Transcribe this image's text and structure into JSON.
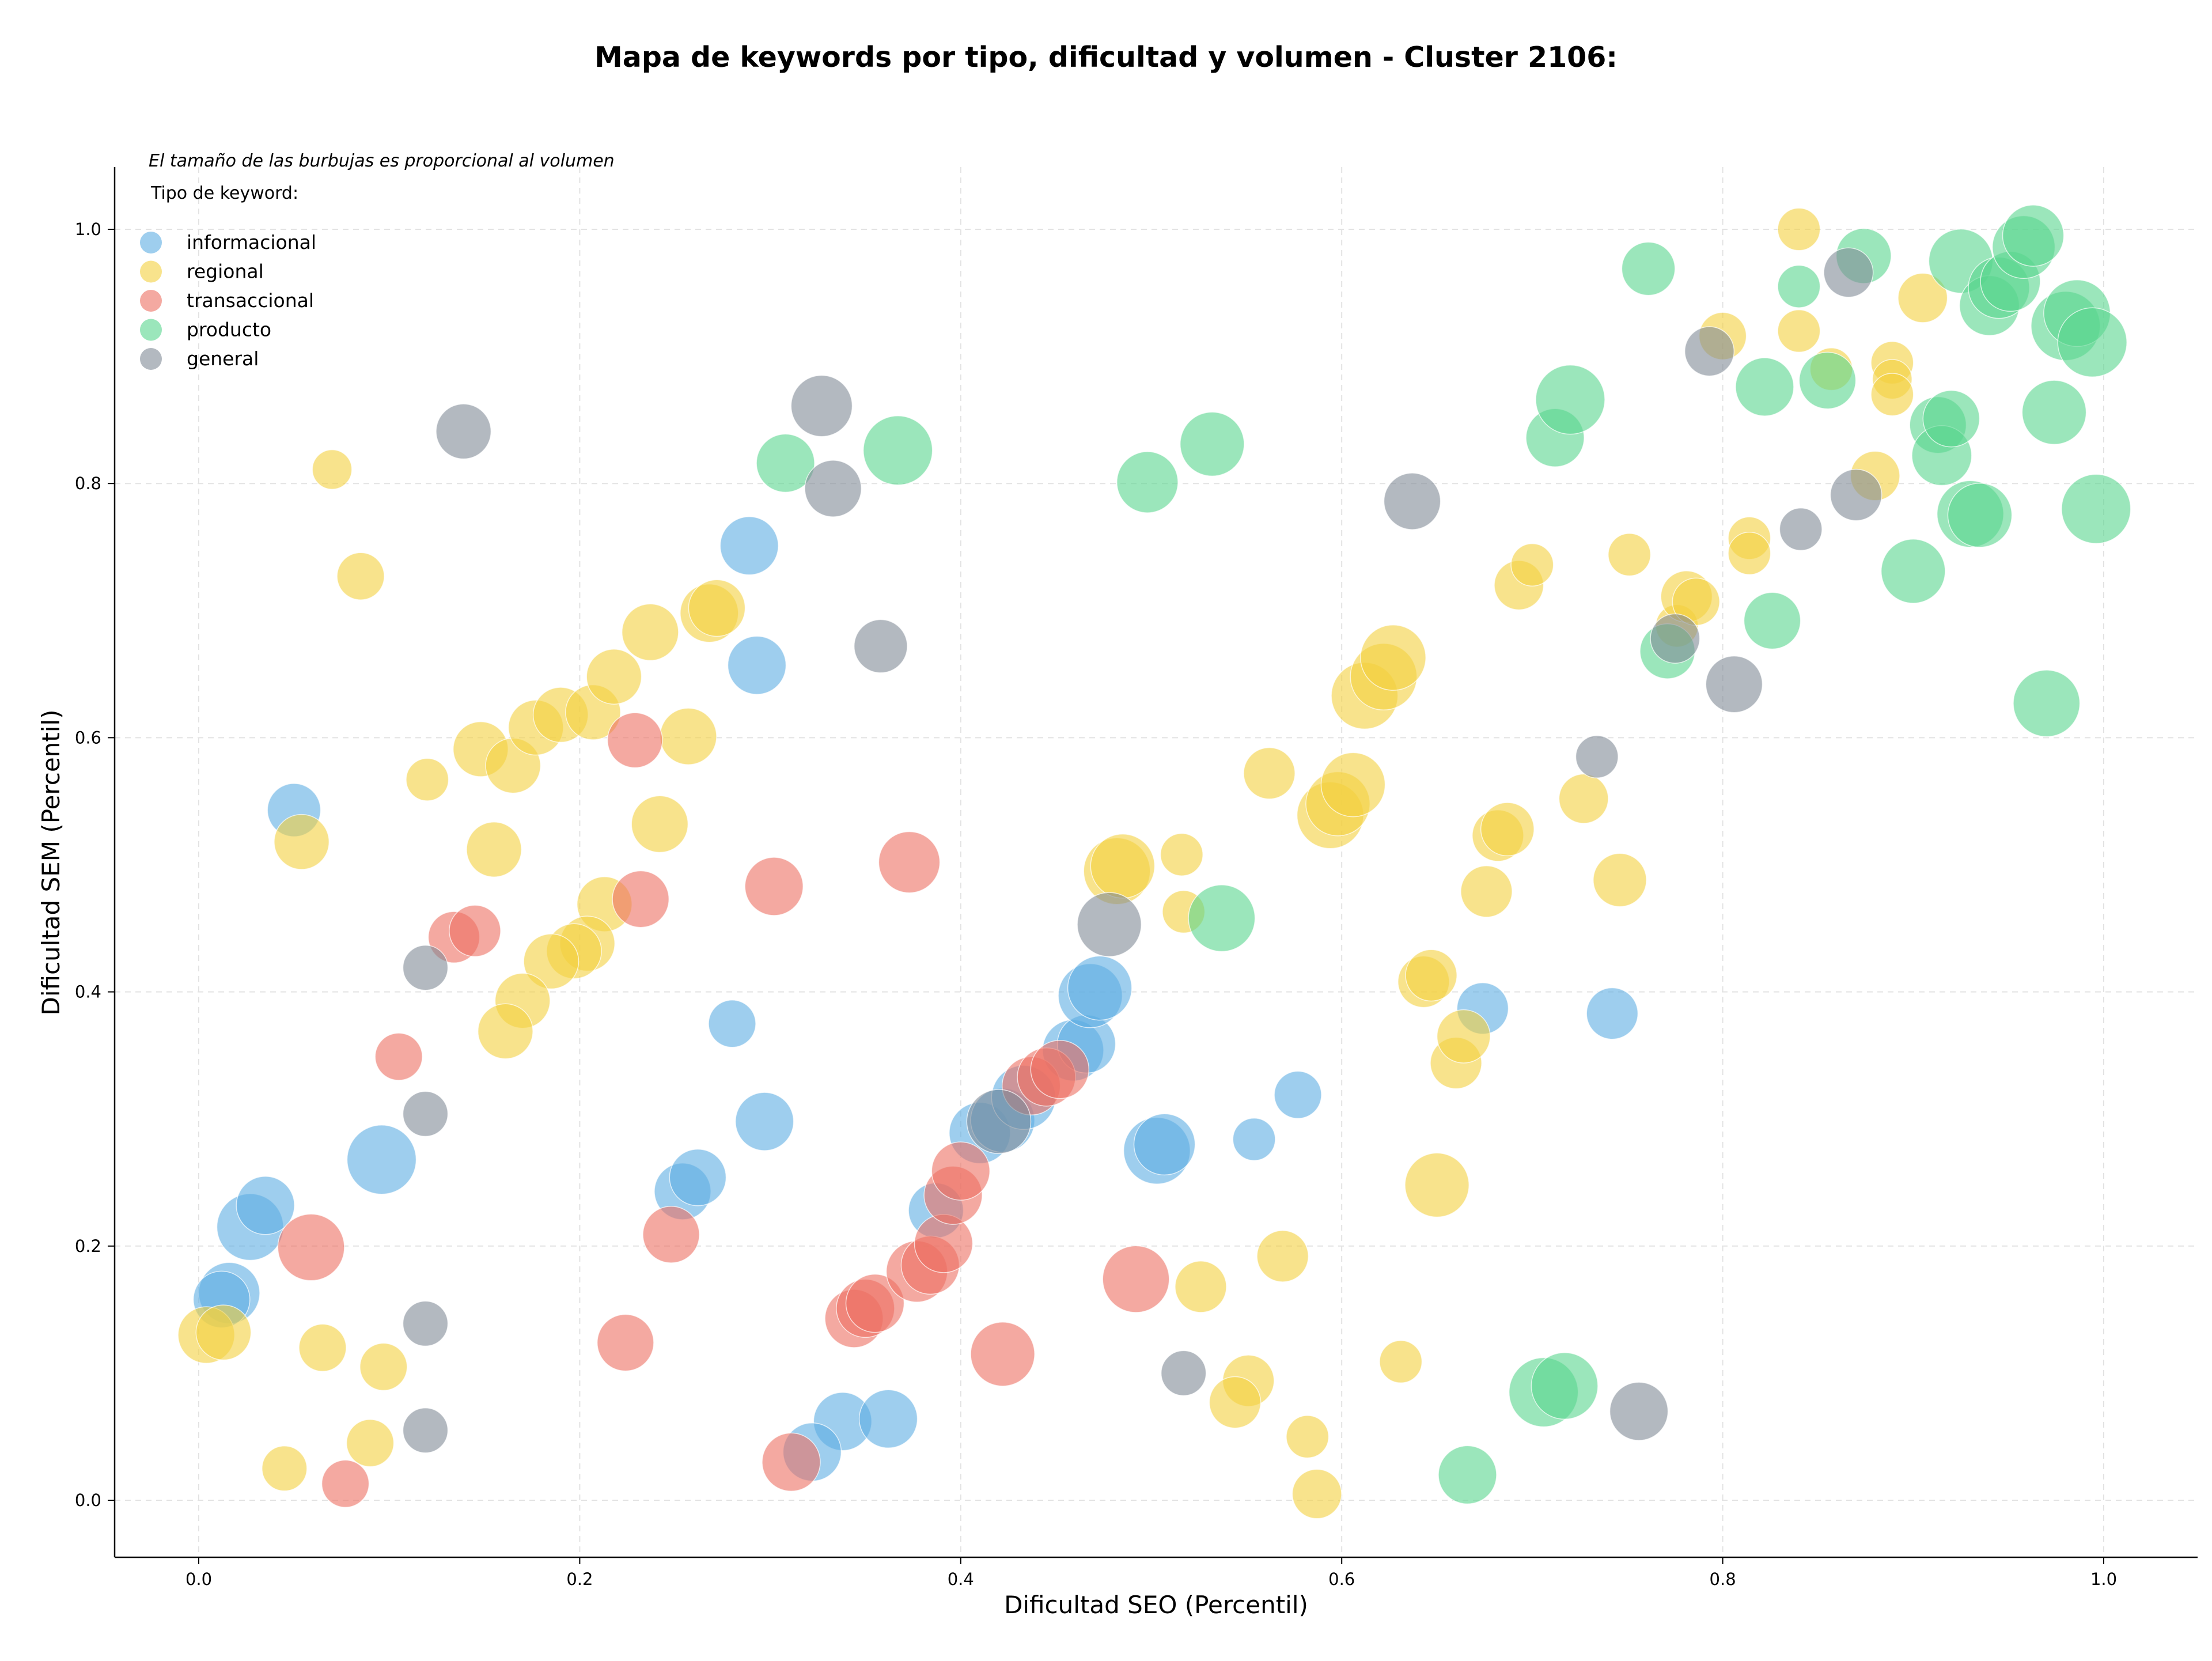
{
  "chart_data": {
    "type": "scatter",
    "title": "Mapa de keywords por tipo, dificultad y volumen - Cluster 2106:",
    "xlabel": "Dificultad SEO (Percentil)",
    "ylabel": "Dificultad SEM (Percentil)",
    "note": "El tamaño de las burbujas es proporcional al volumen",
    "legend_title": "Tipo de keyword:",
    "legend_position": "top-left",
    "xlim": [
      -0.045,
      1.05
    ],
    "ylim": [
      -0.045,
      1.05
    ],
    "xticks": [
      "0.0",
      "0.2",
      "0.4",
      "0.6",
      "0.8",
      "1.0"
    ],
    "yticks": [
      "0.0",
      "0.2",
      "0.4",
      "0.6",
      "0.8",
      "1.0"
    ],
    "grid": true,
    "series": [
      {
        "name": "informacional",
        "color": "#5dade2",
        "points": [
          [
            0.05,
            0.543,
            0.45
          ],
          [
            0.096,
            0.268,
            1
          ],
          [
            0.027,
            0.215,
            0.9
          ],
          [
            0.035,
            0.232,
            0.6
          ],
          [
            0.016,
            0.163,
            0.7
          ],
          [
            0.012,
            0.158,
            0.55
          ],
          [
            0.289,
            0.751,
            0.6
          ],
          [
            0.293,
            0.657,
            0.6
          ],
          [
            0.28,
            0.375,
            0.3
          ],
          [
            0.297,
            0.298,
            0.6
          ],
          [
            0.254,
            0.243,
            0.55
          ],
          [
            0.262,
            0.254,
            0.55
          ],
          [
            0.338,
            0.062,
            0.6
          ],
          [
            0.362,
            0.064,
            0.6
          ],
          [
            0.322,
            0.038,
            0.6
          ],
          [
            0.41,
            0.289,
            0.7
          ],
          [
            0.422,
            0.299,
            0.8
          ],
          [
            0.433,
            0.317,
            0.8
          ],
          [
            0.459,
            0.354,
            0.7
          ],
          [
            0.466,
            0.359,
            0.6
          ],
          [
            0.468,
            0.397,
            0.8
          ],
          [
            0.473,
            0.403,
            0.8
          ],
          [
            0.503,
            0.275,
            0.9
          ],
          [
            0.507,
            0.28,
            0.7
          ],
          [
            0.387,
            0.228,
            0.5
          ],
          [
            0.554,
            0.284,
            0.2
          ],
          [
            0.577,
            0.319,
            0.3
          ],
          [
            0.674,
            0.387,
            0.4
          ],
          [
            0.742,
            0.383,
            0.4
          ]
        ]
      },
      {
        "name": "regional",
        "color": "#f4d03f",
        "points": [
          [
            0.07,
            0.811,
            0.15
          ],
          [
            0.085,
            0.727,
            0.3
          ],
          [
            0.12,
            0.567,
            0.2
          ],
          [
            0.054,
            0.518,
            0.5
          ],
          [
            0.004,
            0.13,
            0.55
          ],
          [
            0.013,
            0.132,
            0.5
          ],
          [
            0.065,
            0.12,
            0.3
          ],
          [
            0.097,
            0.105,
            0.3
          ],
          [
            0.045,
            0.025,
            0.25
          ],
          [
            0.09,
            0.045,
            0.3
          ],
          [
            0.148,
            0.591,
            0.5
          ],
          [
            0.165,
            0.578,
            0.5
          ],
          [
            0.177,
            0.608,
            0.5
          ],
          [
            0.19,
            0.618,
            0.5
          ],
          [
            0.207,
            0.62,
            0.5
          ],
          [
            0.218,
            0.648,
            0.5
          ],
          [
            0.237,
            0.683,
            0.55
          ],
          [
            0.268,
            0.698,
            0.6
          ],
          [
            0.272,
            0.702,
            0.55
          ],
          [
            0.257,
            0.601,
            0.55
          ],
          [
            0.242,
            0.532,
            0.55
          ],
          [
            0.155,
            0.512,
            0.5
          ],
          [
            0.213,
            0.469,
            0.5
          ],
          [
            0.204,
            0.438,
            0.5
          ],
          [
            0.197,
            0.432,
            0.5
          ],
          [
            0.185,
            0.424,
            0.5
          ],
          [
            0.17,
            0.393,
            0.5
          ],
          [
            0.161,
            0.369,
            0.5
          ],
          [
            0.482,
            0.495,
            0.9
          ],
          [
            0.485,
            0.499,
            0.8
          ],
          [
            0.516,
            0.508,
            0.2
          ],
          [
            0.517,
            0.463,
            0.2
          ],
          [
            0.562,
            0.572,
            0.4
          ],
          [
            0.594,
            0.539,
            0.9
          ],
          [
            0.598,
            0.548,
            0.8
          ],
          [
            0.606,
            0.563,
            0.8
          ],
          [
            0.612,
            0.633,
            0.9
          ],
          [
            0.622,
            0.648,
            0.9
          ],
          [
            0.627,
            0.663,
            0.85
          ],
          [
            0.526,
            0.168,
            0.4
          ],
          [
            0.569,
            0.192,
            0.4
          ],
          [
            0.551,
            0.094,
            0.4
          ],
          [
            0.544,
            0.077,
            0.4
          ],
          [
            0.582,
            0.05,
            0.2
          ],
          [
            0.587,
            0.005,
            0.35
          ],
          [
            0.631,
            0.109,
            0.2
          ],
          [
            0.65,
            0.248,
            0.8
          ],
          [
            0.643,
            0.408,
            0.4
          ],
          [
            0.647,
            0.413,
            0.4
          ],
          [
            0.66,
            0.344,
            0.4
          ],
          [
            0.664,
            0.365,
            0.45
          ],
          [
            0.676,
            0.479,
            0.4
          ],
          [
            0.682,
            0.523,
            0.4
          ],
          [
            0.687,
            0.528,
            0.45
          ],
          [
            0.693,
            0.72,
            0.35
          ],
          [
            0.7,
            0.736,
            0.2
          ],
          [
            0.727,
            0.552,
            0.35
          ],
          [
            0.746,
            0.488,
            0.45
          ],
          [
            0.751,
            0.744,
            0.2
          ],
          [
            0.776,
            0.688,
            0.2
          ],
          [
            0.781,
            0.711,
            0.4
          ],
          [
            0.786,
            0.707,
            0.3
          ],
          [
            0.8,
            0.916,
            0.3
          ],
          [
            0.814,
            0.757,
            0.2
          ],
          [
            0.814,
            0.745,
            0.2
          ],
          [
            0.84,
            1.0,
            0.2
          ],
          [
            0.84,
            0.92,
            0.2
          ],
          [
            0.857,
            0.89,
            0.2
          ],
          [
            0.88,
            0.806,
            0.35
          ],
          [
            0.889,
            0.895,
            0.2
          ],
          [
            0.889,
            0.882,
            0.15
          ],
          [
            0.889,
            0.87,
            0.2
          ],
          [
            0.905,
            0.946,
            0.35
          ]
        ]
      },
      {
        "name": "transaccional",
        "color": "#ec7063",
        "points": [
          [
            0.059,
            0.199,
            0.9
          ],
          [
            0.105,
            0.349,
            0.3
          ],
          [
            0.134,
            0.443,
            0.4
          ],
          [
            0.145,
            0.448,
            0.4
          ],
          [
            0.229,
            0.598,
            0.5
          ],
          [
            0.232,
            0.473,
            0.55
          ],
          [
            0.302,
            0.483,
            0.6
          ],
          [
            0.373,
            0.502,
            0.7
          ],
          [
            0.224,
            0.124,
            0.55
          ],
          [
            0.248,
            0.209,
            0.55
          ],
          [
            0.311,
            0.03,
            0.6
          ],
          [
            0.344,
            0.143,
            0.6
          ],
          [
            0.35,
            0.151,
            0.6
          ],
          [
            0.355,
            0.155,
            0.6
          ],
          [
            0.377,
            0.18,
            0.7
          ],
          [
            0.384,
            0.185,
            0.6
          ],
          [
            0.391,
            0.202,
            0.6
          ],
          [
            0.396,
            0.24,
            0.6
          ],
          [
            0.4,
            0.259,
            0.6
          ],
          [
            0.422,
            0.115,
            0.8
          ],
          [
            0.437,
            0.326,
            0.6
          ],
          [
            0.445,
            0.333,
            0.6
          ],
          [
            0.452,
            0.339,
            0.6
          ],
          [
            0.492,
            0.174,
            0.9
          ],
          [
            0.077,
            0.013,
            0.3
          ]
        ]
      },
      {
        "name": "producto",
        "color": "#58d68d",
        "points": [
          [
            0.308,
            0.816,
            0.6
          ],
          [
            0.367,
            0.826,
            1
          ],
          [
            0.498,
            0.801,
            0.7
          ],
          [
            0.532,
            0.831,
            0.8
          ],
          [
            0.537,
            0.458,
            0.9
          ],
          [
            0.666,
            0.02,
            0.6
          ],
          [
            0.706,
            0.085,
            1
          ],
          [
            0.717,
            0.09,
            0.9
          ],
          [
            0.712,
            0.836,
            0.6
          ],
          [
            0.72,
            0.866,
            1
          ],
          [
            0.761,
            0.969,
            0.45
          ],
          [
            0.771,
            0.668,
            0.5
          ],
          [
            0.822,
            0.876,
            0.6
          ],
          [
            0.826,
            0.692,
            0.55
          ],
          [
            0.84,
            0.955,
            0.2
          ],
          [
            0.855,
            0.881,
            0.55
          ],
          [
            0.874,
            0.979,
            0.5
          ],
          [
            0.9,
            0.731,
            0.8
          ],
          [
            0.913,
            0.846,
            0.55
          ],
          [
            0.915,
            0.822,
            0.65
          ],
          [
            0.92,
            0.851,
            0.55
          ],
          [
            0.925,
            0.975,
            0.8
          ],
          [
            0.93,
            0.776,
            0.9
          ],
          [
            0.935,
            0.775,
            0.8
          ],
          [
            0.94,
            0.94,
            0.65
          ],
          [
            0.945,
            0.954,
            0.7
          ],
          [
            0.951,
            0.959,
            0.65
          ],
          [
            0.958,
            0.986,
            0.75
          ],
          [
            0.963,
            0.995,
            0.7
          ],
          [
            0.97,
            0.627,
            0.9
          ],
          [
            0.974,
            0.856,
            0.8
          ],
          [
            0.98,
            0.924,
            1
          ],
          [
            0.986,
            0.934,
            0.9
          ],
          [
            0.994,
            0.911,
            1
          ],
          [
            0.996,
            0.78,
            1
          ]
        ]
      },
      {
        "name": "general",
        "color": "#808b96",
        "points": [
          [
            0.139,
            0.841,
            0.5
          ],
          [
            0.119,
            0.419,
            0.25
          ],
          [
            0.119,
            0.304,
            0.25
          ],
          [
            0.119,
            0.139,
            0.25
          ],
          [
            0.119,
            0.055,
            0.25
          ],
          [
            0.327,
            0.861,
            0.7
          ],
          [
            0.333,
            0.796,
            0.55
          ],
          [
            0.358,
            0.672,
            0.45
          ],
          [
            0.42,
            0.298,
            0.8
          ],
          [
            0.478,
            0.453,
            0.8
          ],
          [
            0.517,
            0.1,
            0.25
          ],
          [
            0.637,
            0.786,
            0.55
          ],
          [
            0.734,
            0.585,
            0.2
          ],
          [
            0.756,
            0.07,
            0.6
          ],
          [
            0.775,
            0.678,
            0.35
          ],
          [
            0.793,
            0.904,
            0.35
          ],
          [
            0.806,
            0.642,
            0.55
          ],
          [
            0.841,
            0.764,
            0.2
          ],
          [
            0.866,
            0.966,
            0.35
          ],
          [
            0.87,
            0.791,
            0.4
          ]
        ]
      }
    ]
  }
}
